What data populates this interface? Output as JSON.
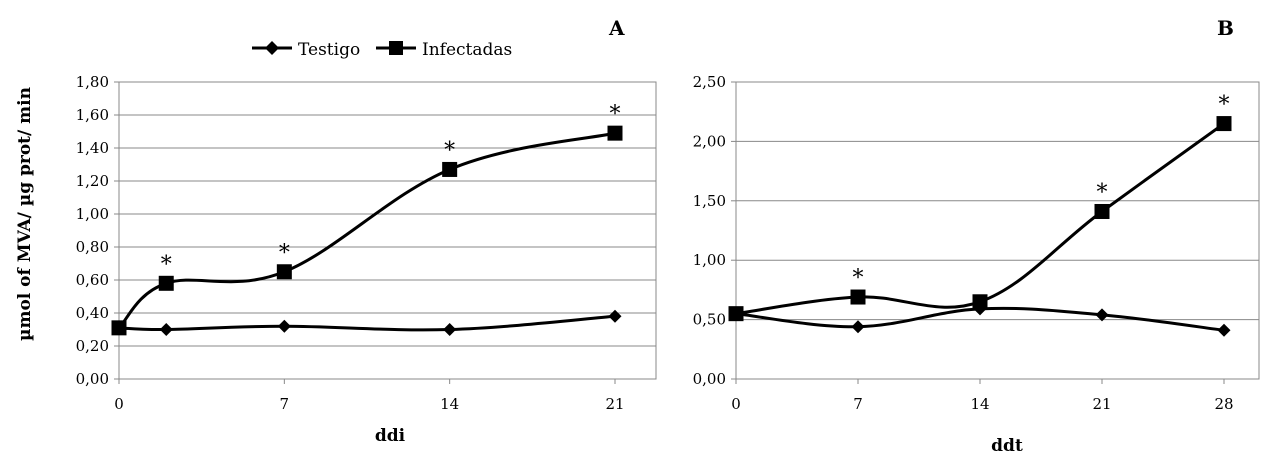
{
  "chart_data": [
    {
      "type": "line",
      "panel_label": "A",
      "xlabel": "ddi",
      "ylabel": "µmol of MVA/ µg prot/ min",
      "x_ticks": [
        "0",
        "7",
        "14",
        "21"
      ],
      "xlim": [
        0,
        23
      ],
      "ylim": [
        0,
        1.8
      ],
      "y_ticks": [
        "0,00",
        "0,20",
        "0,40",
        "0,60",
        "0,80",
        "1,00",
        "1,20",
        "1,40",
        "1,60",
        "1,80"
      ],
      "grid": "horizontal",
      "legend_position": "top",
      "series": [
        {
          "name": "Testigo",
          "marker": "diamond",
          "x": [
            0,
            2,
            7,
            14,
            21
          ],
          "values": [
            0.31,
            0.3,
            0.32,
            0.3,
            0.38
          ]
        },
        {
          "name": "Infectadas",
          "marker": "square",
          "x": [
            0,
            2,
            7,
            14,
            21
          ],
          "values": [
            0.31,
            0.58,
            0.65,
            1.27,
            1.49
          ]
        }
      ],
      "annotations": [
        {
          "text": "*",
          "x": 2,
          "y": 0.58
        },
        {
          "text": "*",
          "x": 7,
          "y": 0.65
        },
        {
          "text": "*",
          "x": 14,
          "y": 1.27
        },
        {
          "text": "*",
          "x": 21,
          "y": 1.49
        }
      ]
    },
    {
      "type": "line",
      "panel_label": "B",
      "xlabel": "ddt",
      "ylabel": "",
      "x_ticks": [
        "0",
        "7",
        "14",
        "21",
        "28"
      ],
      "xlim": [
        0,
        29
      ],
      "ylim": [
        0,
        2.5
      ],
      "y_ticks": [
        "0,00",
        "0,50",
        "1,00",
        "1,50",
        "2,00",
        "2,50"
      ],
      "grid": "horizontal",
      "series": [
        {
          "name": "Testigo",
          "marker": "diamond",
          "x": [
            0,
            7,
            14,
            21,
            28
          ],
          "values": [
            0.55,
            0.44,
            0.59,
            0.54,
            0.41
          ]
        },
        {
          "name": "Infectadas",
          "marker": "square",
          "x": [
            0,
            7,
            14,
            21
          ],
          "values": [
            0.55,
            0.69,
            0.65,
            1.41
          ]
        },
        {
          "name": "Infectadas",
          "marker": "square",
          "x": [
            28
          ],
          "values": [
            2.15
          ],
          "continues_previous": true
        }
      ],
      "annotations": [
        {
          "text": "*",
          "x": 7,
          "y": 0.69
        },
        {
          "text": "*",
          "x": 21,
          "y": 1.41
        },
        {
          "text": "*",
          "x": 28,
          "y": 2.15
        }
      ]
    }
  ]
}
